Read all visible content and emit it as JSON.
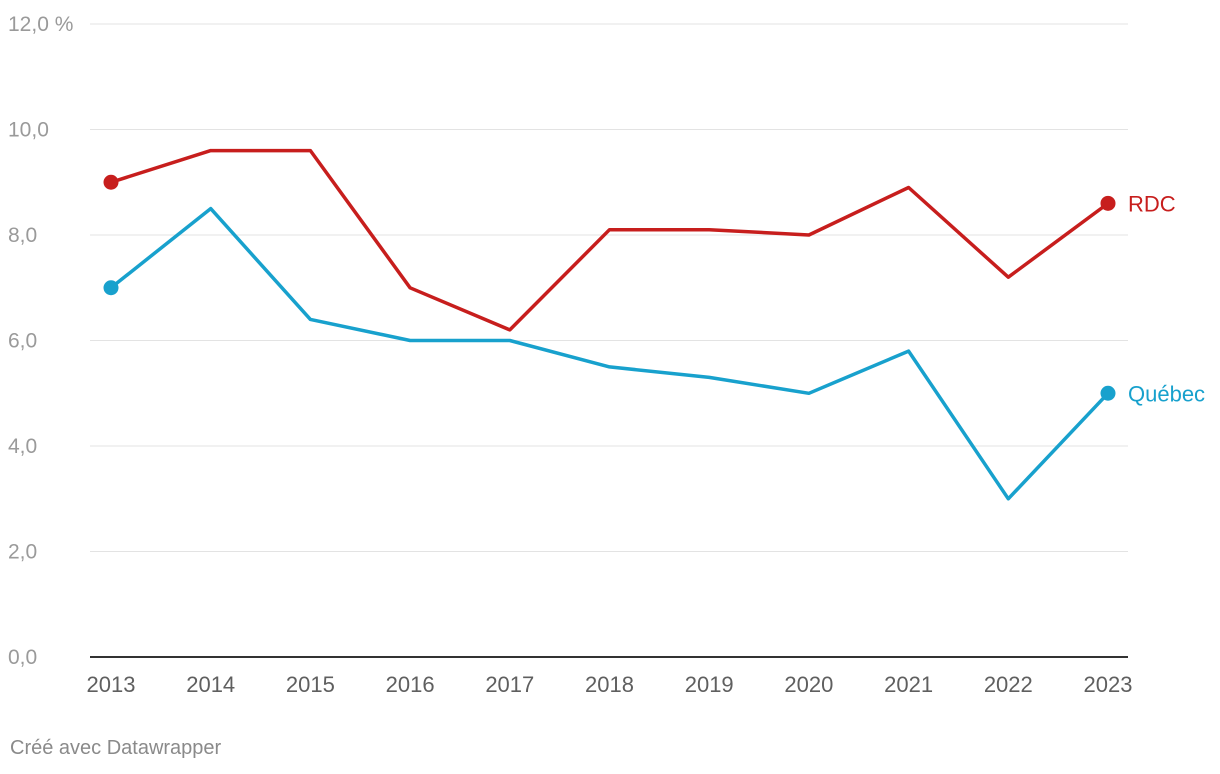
{
  "chart_data": {
    "type": "line",
    "x": [
      "2013",
      "2014",
      "2015",
      "2016",
      "2017",
      "2018",
      "2019",
      "2020",
      "2021",
      "2022",
      "2023"
    ],
    "series": [
      {
        "name": "RDC",
        "color": "#c71e1d",
        "values": [
          9.0,
          9.6,
          9.6,
          7.0,
          6.2,
          8.1,
          8.1,
          8.0,
          8.9,
          7.2,
          8.6
        ]
      },
      {
        "name": "Québec",
        "color": "#18a1cd",
        "values": [
          7.0,
          8.5,
          6.4,
          6.0,
          6.0,
          5.5,
          5.3,
          5.0,
          5.8,
          3.0,
          5.0
        ]
      }
    ],
    "ylim": [
      0,
      12
    ],
    "yticks": [
      0,
      2,
      4,
      6,
      8,
      10,
      12
    ],
    "ytick_labels": [
      "0,0",
      "2,0",
      "4,0",
      "6,0",
      "8,0",
      "10,0",
      "12,0 %"
    ],
    "grid": true,
    "legend": "direct labels at line ends",
    "markers": "first and last points"
  },
  "footer": {
    "credit": "Créé avec Datawrapper"
  }
}
